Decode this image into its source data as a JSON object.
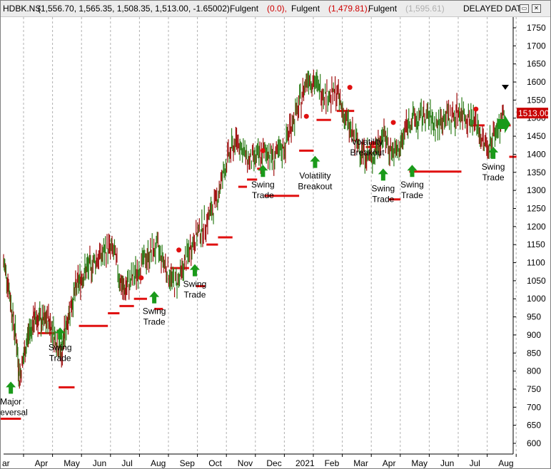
{
  "header": {
    "symbol": "HDBK.NS",
    "ohlc": "(1,556.70, 1,565.35, 1,508.35, 1,513.00, -1.65002),",
    "ind1_name": "Fulgent",
    "ind1_value": "(0.0),",
    "ind2_name": "Fulgent",
    "ind2_value": "(1,479.81),",
    "ind3_name": "Fulgent",
    "ind3_value": "(1,595.61)",
    "status": "DELAYED DATA",
    "icons": [
      "restore-icon",
      "close-icon"
    ]
  },
  "colors": {
    "price": "#2e7d1a",
    "price_down": "#a01010",
    "stop": "#e01010",
    "arrow": "#1a9a1a",
    "grid": "#b0b0b0",
    "last_price_bg": "#c80000"
  },
  "chart_data": {
    "type": "line",
    "title": "",
    "xlabel": "",
    "ylabel": "",
    "ylim": [
      570,
      1780
    ],
    "y_ticks": [
      600,
      650,
      700,
      750,
      800,
      850,
      900,
      950,
      1000,
      1050,
      1100,
      1150,
      1200,
      1250,
      1300,
      1350,
      1400,
      1450,
      1500,
      1550,
      1600,
      1650,
      1700,
      1750
    ],
    "x_ticks": [
      "ar",
      "Apr",
      "May",
      "Jun",
      "Jul",
      "Aug",
      "Sep",
      "Oct",
      "Nov",
      "Dec",
      "2021",
      "Feb",
      "Mar",
      "Apr",
      "May",
      "Jun",
      "Jul",
      "Aug"
    ],
    "x_tick_index": [
      0,
      1,
      2,
      3,
      4,
      5,
      6,
      7,
      8,
      9,
      10,
      11,
      12,
      13,
      14,
      15,
      16,
      17
    ],
    "last_price": "1513.00",
    "series": [
      {
        "role": "price",
        "x": [
          0,
          0.15,
          0.3,
          0.45,
          0.55,
          0.7,
          0.85,
          1.0,
          1.1,
          1.25,
          1.4,
          1.55,
          1.7,
          1.85,
          2.0,
          2.1,
          2.25,
          2.4,
          2.55,
          2.7,
          2.85,
          3.0,
          3.2,
          3.4,
          3.6,
          3.8,
          4.0,
          4.15,
          4.3,
          4.5,
          4.7,
          4.9,
          5.1,
          5.3,
          5.5,
          5.7,
          5.9,
          6.1,
          6.3,
          6.5,
          6.7,
          6.9,
          7.1,
          7.3,
          7.5,
          7.7,
          7.9,
          8.1,
          8.3,
          8.5,
          8.7,
          8.9,
          9.1,
          9.3,
          9.5,
          9.7,
          9.9,
          10.1,
          10.3,
          10.5,
          10.7,
          10.9,
          11.1,
          11.3,
          11.5,
          11.7,
          11.9,
          12.1,
          12.3,
          12.5,
          12.7,
          12.9,
          13.1,
          13.3,
          13.5,
          13.7,
          13.9,
          14.1,
          14.3,
          14.5,
          14.7,
          14.9,
          15.1,
          15.3,
          15.5,
          15.7,
          15.9,
          16.1,
          16.3,
          16.5,
          16.7,
          16.9,
          17.1,
          17.3
        ],
        "values": [
          1100,
          1050,
          960,
          880,
          780,
          840,
          900,
          930,
          950,
          940,
          935,
          945,
          910,
          880,
          850,
          900,
          960,
          1000,
          1040,
          1060,
          1080,
          1090,
          1110,
          1120,
          1140,
          1130,
          1060,
          1020,
          1040,
          1060,
          1090,
          1110,
          1130,
          1140,
          1110,
          1070,
          1040,
          1060,
          1110,
          1150,
          1180,
          1200,
          1230,
          1260,
          1320,
          1380,
          1420,
          1440,
          1400,
          1380,
          1390,
          1395,
          1410,
          1390,
          1400,
          1420,
          1480,
          1510,
          1560,
          1620,
          1600,
          1580,
          1570,
          1560,
          1570,
          1520,
          1480,
          1440,
          1420,
          1400,
          1390,
          1420,
          1460,
          1420,
          1400,
          1420,
          1480,
          1500,
          1490,
          1510,
          1500,
          1480,
          1490,
          1510,
          1500,
          1520,
          1510,
          1500,
          1490,
          1440,
          1420,
          1450,
          1480,
          1513
        ]
      },
      {
        "role": "stop",
        "segments": [
          {
            "x0": -0.1,
            "x1": 0.6,
            "y": 668
          },
          {
            "x0": 1.2,
            "x1": 1.75,
            "y": 905
          },
          {
            "x0": 1.9,
            "x1": 2.45,
            "y": 755
          },
          {
            "x0": 2.6,
            "x1": 3.6,
            "y": 925
          },
          {
            "x0": 3.6,
            "x1": 4.0,
            "y": 960
          },
          {
            "x0": 4.0,
            "x1": 4.5,
            "y": 980
          },
          {
            "x0": 4.5,
            "x1": 4.95,
            "y": 1000
          },
          {
            "x0": 5.2,
            "x1": 5.5,
            "y": 972
          },
          {
            "x0": 5.75,
            "x1": 6.4,
            "y": 1085
          },
          {
            "x0": 6.65,
            "x1": 6.95,
            "y": 1035
          },
          {
            "x0": 7.0,
            "x1": 7.4,
            "y": 1150
          },
          {
            "x0": 7.4,
            "x1": 7.9,
            "y": 1170
          },
          {
            "x0": 8.1,
            "x1": 8.4,
            "y": 1310
          },
          {
            "x0": 8.4,
            "x1": 8.75,
            "y": 1330
          },
          {
            "x0": 8.75,
            "x1": 9.0,
            "y": 1360
          },
          {
            "x0": 9.0,
            "x1": 10.2,
            "y": 1285
          },
          {
            "x0": 10.2,
            "x1": 10.7,
            "y": 1410
          },
          {
            "x0": 10.8,
            "x1": 11.3,
            "y": 1495
          },
          {
            "x0": 11.5,
            "x1": 12.1,
            "y": 1520
          },
          {
            "x0": 12.5,
            "x1": 12.9,
            "y": 1420
          },
          {
            "x0": 13.3,
            "x1": 13.7,
            "y": 1275
          },
          {
            "x0": 14.0,
            "x1": 15.8,
            "y": 1352
          },
          {
            "x0": 16.1,
            "x1": 16.6,
            "y": 1480
          },
          {
            "x0": 17.0,
            "x1": 17.5,
            "y": 1480
          },
          {
            "x0": 17.45,
            "x1": 17.7,
            "y": 1393
          }
        ]
      },
      {
        "role": "markers",
        "x": [
          4.75,
          6.05,
          8.95,
          10.45,
          11.95,
          12.75,
          13.45,
          16.3
        ],
        "values": [
          1058,
          1135,
          1410,
          1505,
          1585,
          1430,
          1488,
          1525
        ]
      }
    ],
    "annotations": [
      {
        "text1": "Major",
        "text2": "Reversal",
        "x": 0.25,
        "y_arrow": 755
      },
      {
        "text1": "Swing",
        "text2": "Trade",
        "x": 1.95,
        "y_arrow": 905
      },
      {
        "text1": "Swing",
        "text2": "Trade",
        "x": 5.2,
        "y_arrow": 1005
      },
      {
        "text1": "Swing",
        "text2": "Trade",
        "x": 6.6,
        "y_arrow": 1080
      },
      {
        "text1": "Swing",
        "text2": "Trade",
        "x": 8.95,
        "y_arrow": 1355
      },
      {
        "text1": "Volatility",
        "text2": "Breakout",
        "x": 10.75,
        "y_arrow": 1380
      },
      {
        "text1": "Swing",
        "text2": "Trade",
        "x": 13.1,
        "y_arrow": 1345
      },
      {
        "text1": "Swing",
        "text2": "Trade",
        "x": 14.1,
        "y_arrow": 1355
      },
      {
        "text1": "Swing",
        "text2": "Trade",
        "x": 16.9,
        "y_arrow": 1405
      }
    ],
    "top_annotation": {
      "text1": "Volatility",
      "text2": "Breakout",
      "x": 12.55
    }
  }
}
